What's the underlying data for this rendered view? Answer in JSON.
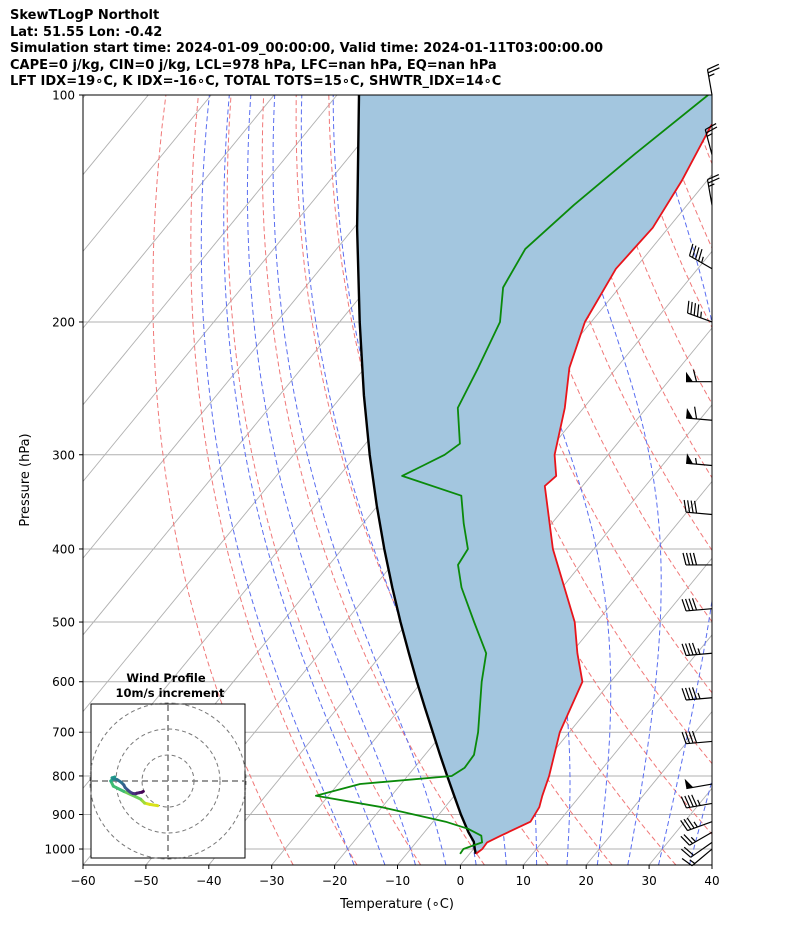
{
  "header": {
    "line1": "SkewTLogP Northolt",
    "line2": "Lat: 51.55   Lon: -0.42",
    "line3": "Simulation start time: 2024-01-09_00:00:00, Valid time: 2024-01-11T03:00:00.00",
    "line4": "CAPE=0 j/kg, CIN=0 j/kg, LCL=978 hPa, LFC=nan hPa, EQ=nan hPa",
    "line5": "LFT IDX=19∘C, K IDX=-16∘C, TOTAL TOTS=15∘C, SHWTR_IDX=14∘C"
  },
  "colors": {
    "temperature": "#e8141b",
    "dewpoint": "#0a8a0a",
    "parcel": "#000000",
    "shading": "#a3c6df",
    "dry_adiabat": "#f07878",
    "moist_adiabat": "#5a6ef0",
    "isotherm": "#b0b0b0",
    "grid": "#b0b0b0"
  },
  "chart_data": {
    "type": "skewt-logp",
    "xlabel": "Temperature (∘C)",
    "ylabel": "Pressure (hPa)",
    "xlim": [
      -60,
      40
    ],
    "ylim": [
      1050,
      100
    ],
    "x_ticks": [
      -60,
      -50,
      -40,
      -30,
      -20,
      -10,
      0,
      10,
      20,
      30,
      40
    ],
    "x_tick_labels": [
      "−60",
      "−50",
      "−40",
      "−30",
      "−20",
      "−10",
      "0",
      "10",
      "20",
      "30",
      "40"
    ],
    "y_ticks": [
      1000,
      900,
      800,
      700,
      600,
      500,
      400,
      300,
      200,
      100
    ],
    "grid": true,
    "temperature": {
      "p": [
        1015,
        1000,
        980,
        960,
        920,
        880,
        850,
        800,
        700,
        600,
        550,
        500,
        400,
        330,
        320,
        300,
        260,
        230,
        200,
        170,
        150,
        130,
        110,
        100
      ],
      "t": [
        1.0,
        1.4,
        1.3,
        2.6,
        5.5,
        5.0,
        4.0,
        2.5,
        -1.5,
        -4.5,
        -9.0,
        -13.5,
        -26.5,
        -36.0,
        -35.5,
        -38.5,
        -43.0,
        -47.5,
        -51.0,
        -53.0,
        -52.5,
        -54.0,
        -56.5,
        -57.0
      ]
    },
    "dewpoint": {
      "p": [
        1015,
        1000,
        980,
        960,
        940,
        920,
        880,
        850,
        820,
        800,
        780,
        750,
        700,
        600,
        550,
        500,
        450,
        420,
        400,
        370,
        340,
        320,
        310,
        300,
        290,
        260,
        230,
        200,
        180,
        160,
        140,
        120,
        100
      ],
      "t": [
        -1.5,
        -1.6,
        0.5,
        -0.5,
        -3.5,
        -8.0,
        -20.0,
        -32.0,
        -26.5,
        -13.0,
        -12.0,
        -12.2,
        -14.5,
        -20.5,
        -23.5,
        -29.5,
        -36.0,
        -39.5,
        -40.0,
        -44.0,
        -48.0,
        -60.0,
        -58.0,
        -56.0,
        -55.0,
        -60.0,
        -62.0,
        -64.5,
        -68.5,
        -70.0,
        -68.0,
        -65.0,
        -61.0
      ]
    },
    "parcel": {
      "p": [
        1015,
        1000,
        978,
        950,
        900,
        850,
        800,
        750,
        700,
        650,
        600,
        550,
        500,
        450,
        400,
        350,
        300,
        250,
        200,
        150,
        100
      ],
      "t": [
        1.0,
        0.2,
        -0.9,
        -3.0,
        -6.5,
        -10.0,
        -13.7,
        -17.6,
        -21.7,
        -26.1,
        -30.8,
        -35.8,
        -41.2,
        -47.0,
        -53.3,
        -60.2,
        -67.9,
        -76.6,
        -86.8,
        -99.5,
        -116.5
      ]
    },
    "wind_barbs": {
      "p": [
        100,
        120,
        140,
        170,
        200,
        240,
        270,
        310,
        360,
        420,
        480,
        550,
        630,
        720,
        820,
        870,
        920,
        950,
        980,
        1000
      ],
      "speed_kt": [
        25,
        25,
        25,
        45,
        45,
        60,
        60,
        55,
        40,
        40,
        40,
        45,
        45,
        40,
        50,
        45,
        35,
        25,
        20,
        15
      ],
      "direction_deg": [
        350,
        345,
        350,
        300,
        290,
        270,
        275,
        275,
        275,
        270,
        265,
        265,
        265,
        265,
        260,
        260,
        250,
        240,
        235,
        230
      ]
    },
    "inset": {
      "title": "Wind Profile",
      "subtitle": "10m/s increment",
      "hodograph_u": [
        -4,
        -7,
        -9,
        -10,
        -10.5,
        -12.5,
        -17,
        -21,
        -22,
        -21,
        -20.5,
        -21.5,
        -21,
        -19.5,
        -18,
        -17,
        -16.5,
        -15.5,
        -14.5,
        -13.5,
        -12.5,
        -12,
        -11,
        -10,
        -9.5
      ],
      "hodograph_v": [
        -9.5,
        -9,
        -8.5,
        -7.5,
        -7,
        -6,
        -4,
        -2,
        0,
        1,
        1.5,
        1.2,
        0.8,
        0.5,
        -0.5,
        -1.5,
        -2.5,
        -3.5,
        -4.3,
        -4.8,
        -4.9,
        -4.7,
        -4.5,
        -4.3,
        -4
      ]
    }
  }
}
